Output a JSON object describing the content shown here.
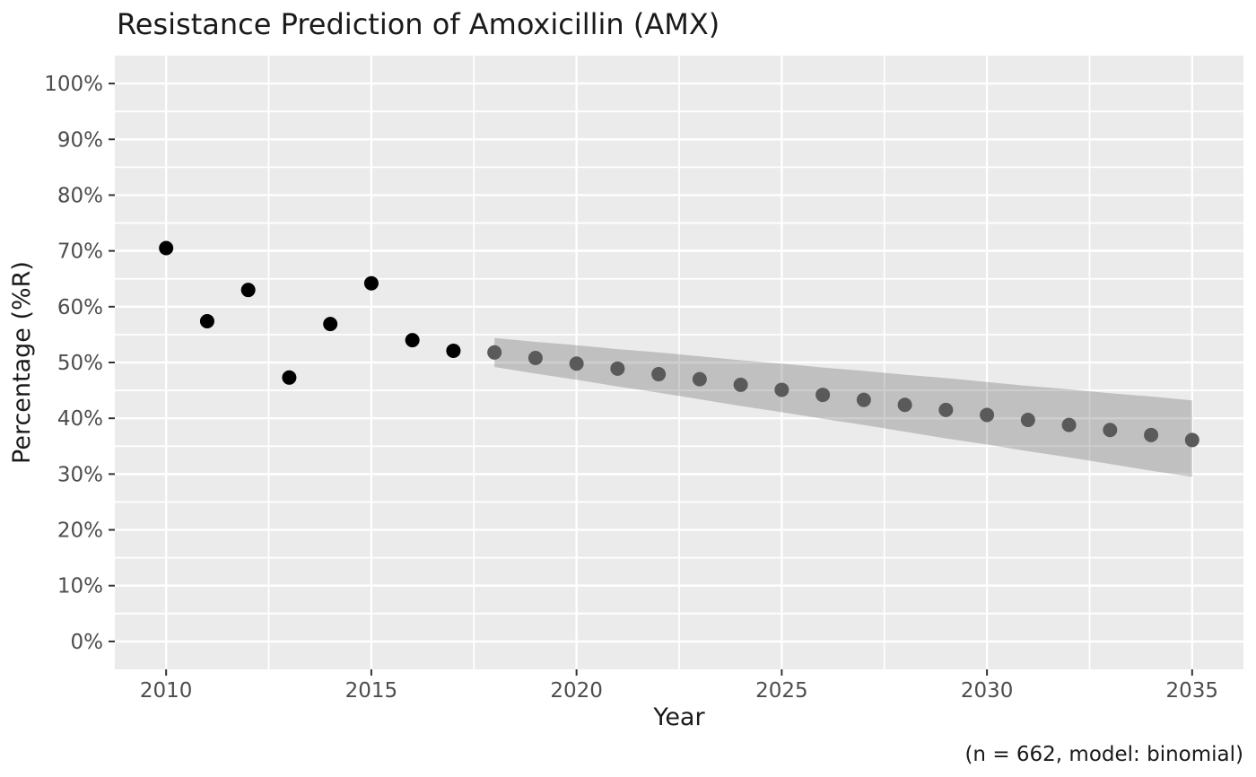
{
  "chart_data": {
    "type": "scatter",
    "title": "Resistance Prediction of Amoxicillin (AMX)",
    "xlabel": "Year",
    "ylabel": "Percentage (%R)",
    "caption": "(n = 662, model: binomial)",
    "xlim": [
      2008.75,
      2036.25
    ],
    "ylim": [
      -5,
      105
    ],
    "grid": "white major and minor gridlines on grey panel, legend off",
    "x_ticks": [
      {
        "value": 2010,
        "label": "2010"
      },
      {
        "value": 2015,
        "label": "2015"
      },
      {
        "value": 2020,
        "label": "2020"
      },
      {
        "value": 2025,
        "label": "2025"
      },
      {
        "value": 2030,
        "label": "2030"
      },
      {
        "value": 2035,
        "label": "2035"
      }
    ],
    "y_ticks": [
      {
        "value": 0,
        "label": "0%"
      },
      {
        "value": 10,
        "label": "10%"
      },
      {
        "value": 20,
        "label": "20%"
      },
      {
        "value": 30,
        "label": "30%"
      },
      {
        "value": 40,
        "label": "40%"
      },
      {
        "value": 50,
        "label": "50%"
      },
      {
        "value": 60,
        "label": "60%"
      },
      {
        "value": 70,
        "label": "70%"
      },
      {
        "value": 80,
        "label": "80%"
      },
      {
        "value": 90,
        "label": "90%"
      },
      {
        "value": 100,
        "label": "100%"
      }
    ],
    "x_minor_ticks": [
      2012.5,
      2017.5,
      2022.5,
      2027.5,
      2032.5
    ],
    "y_minor_ticks": [
      5,
      15,
      25,
      35,
      45,
      55,
      65,
      75,
      85,
      95
    ],
    "series": [
      {
        "name": "observed",
        "type": "points",
        "color": "#000000",
        "years": [
          2010,
          2011,
          2012,
          2013,
          2014,
          2015,
          2016,
          2017
        ],
        "values": [
          70.5,
          57.4,
          63.0,
          47.3,
          56.9,
          64.2,
          54.0,
          52.1
        ]
      },
      {
        "name": "predicted",
        "type": "points",
        "color": "#5a5a5a",
        "years": [
          2018,
          2019,
          2020,
          2021,
          2022,
          2023,
          2024,
          2025,
          2026,
          2027,
          2028,
          2029,
          2030,
          2031,
          2032,
          2033,
          2034,
          2035
        ],
        "values": [
          51.8,
          50.8,
          49.8,
          48.9,
          47.9,
          47.0,
          46.0,
          45.1,
          44.2,
          43.3,
          42.4,
          41.5,
          40.6,
          39.7,
          38.8,
          37.9,
          37.0,
          36.1
        ]
      },
      {
        "name": "confidence-interval",
        "type": "ribbon",
        "color": "rgba(63,63,63,0.25)",
        "years": [
          2018,
          2019,
          2020,
          2021,
          2022,
          2023,
          2024,
          2025,
          2026,
          2027,
          2028,
          2029,
          2030,
          2031,
          2032,
          2033,
          2034,
          2035
        ],
        "upper": [
          54.4,
          53.7,
          53.1,
          52.4,
          51.8,
          51.1,
          50.4,
          49.8,
          49.1,
          48.5,
          47.8,
          47.2,
          46.5,
          45.8,
          45.2,
          44.5,
          43.9,
          43.2
        ],
        "lower": [
          49.2,
          48.0,
          46.9,
          45.7,
          44.6,
          43.4,
          42.2,
          41.1,
          39.9,
          38.8,
          37.6,
          36.4,
          35.3,
          34.1,
          33.0,
          31.8,
          30.6,
          29.5
        ]
      }
    ],
    "colors": {
      "panel": "#ebebeb",
      "grid": "#ffffff",
      "tick": "#333333",
      "tick_text": "#4d4d4d",
      "observed": "#000000",
      "predicted": "#5a5a5a",
      "ribbon": "rgba(63,63,63,0.25)"
    }
  }
}
